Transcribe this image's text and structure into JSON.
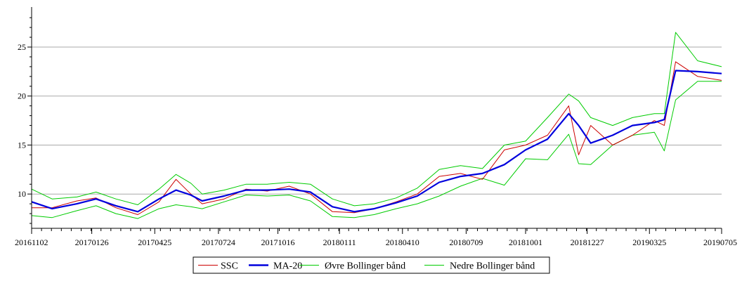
{
  "chart_data": {
    "type": "line",
    "title": "",
    "xlabel": "",
    "ylabel": "",
    "xlim": [
      "20161102",
      "20190705"
    ],
    "ylim": [
      6.5,
      28.8
    ],
    "yticks": [
      10,
      15,
      20,
      25
    ],
    "grid": "horizontal",
    "legend_position": "bottom-center",
    "x_tick_labels": [
      "20161102",
      "20170126",
      "20170425",
      "20170724",
      "20171016",
      "20180111",
      "20180410",
      "20180709",
      "20181001",
      "20181227",
      "20190325",
      "20190705"
    ],
    "x": [
      "20161102",
      "20161201",
      "20170105",
      "20170201",
      "20170301",
      "20170401",
      "20170501",
      "20170525",
      "20170615",
      "20170701",
      "20170801",
      "20170901",
      "20171001",
      "20171101",
      "20171201",
      "20180101",
      "20180201",
      "20180301",
      "20180401",
      "20180501",
      "20180601",
      "20180701",
      "20180801",
      "20180901",
      "20181001",
      "20181101",
      "20181201",
      "20181215",
      "20190101",
      "20190201",
      "20190301",
      "20190401",
      "20190415",
      "20190501",
      "20190601",
      "20190705"
    ],
    "series": [
      {
        "name": "SSC",
        "color": "#cc0000",
        "values": [
          8.6,
          8.6,
          9.3,
          9.6,
          8.6,
          7.9,
          9.2,
          11.5,
          10.0,
          9.0,
          9.5,
          10.5,
          10.3,
          10.8,
          10.0,
          8.2,
          8.1,
          8.5,
          9.2,
          10.0,
          11.8,
          12.1,
          11.5,
          14.5,
          15.0,
          16.0,
          19.0,
          14.0,
          17.0,
          15.0,
          16.0,
          17.5,
          17.0,
          23.5,
          22.0,
          21.6
        ]
      },
      {
        "name": "MA-20",
        "color": "#0000dd",
        "values": [
          9.2,
          8.5,
          9.0,
          9.5,
          8.8,
          8.2,
          9.5,
          10.4,
          9.9,
          9.3,
          9.8,
          10.4,
          10.4,
          10.5,
          10.2,
          8.7,
          8.2,
          8.5,
          9.1,
          9.8,
          11.2,
          11.8,
          12.1,
          13.0,
          14.5,
          15.6,
          18.2,
          17.0,
          15.2,
          16.0,
          17.0,
          17.3,
          17.6,
          22.6,
          22.5,
          22.3
        ]
      },
      {
        "name": "Øvre Bollinger bånd",
        "color": "#00cc00",
        "values": [
          10.5,
          9.5,
          9.7,
          10.2,
          9.5,
          8.9,
          10.5,
          12.0,
          11.1,
          10.0,
          10.4,
          11.0,
          11.0,
          11.2,
          11.0,
          9.5,
          8.8,
          9.0,
          9.6,
          10.6,
          12.5,
          12.9,
          12.6,
          15.0,
          15.4,
          17.8,
          20.2,
          19.5,
          17.8,
          17.0,
          17.8,
          18.2,
          18.2,
          26.5,
          23.6,
          23.0
        ]
      },
      {
        "name": "Nedre Bollinger bånd",
        "color": "#00cc00",
        "values": [
          7.8,
          7.6,
          8.3,
          8.8,
          8.0,
          7.5,
          8.5,
          8.9,
          8.7,
          8.5,
          9.2,
          9.9,
          9.8,
          9.9,
          9.3,
          7.7,
          7.6,
          7.9,
          8.5,
          9.0,
          9.8,
          10.8,
          11.6,
          10.9,
          13.6,
          13.5,
          16.1,
          13.1,
          13.0,
          15.0,
          16.0,
          16.3,
          14.4,
          19.6,
          21.5,
          21.5
        ]
      }
    ]
  }
}
